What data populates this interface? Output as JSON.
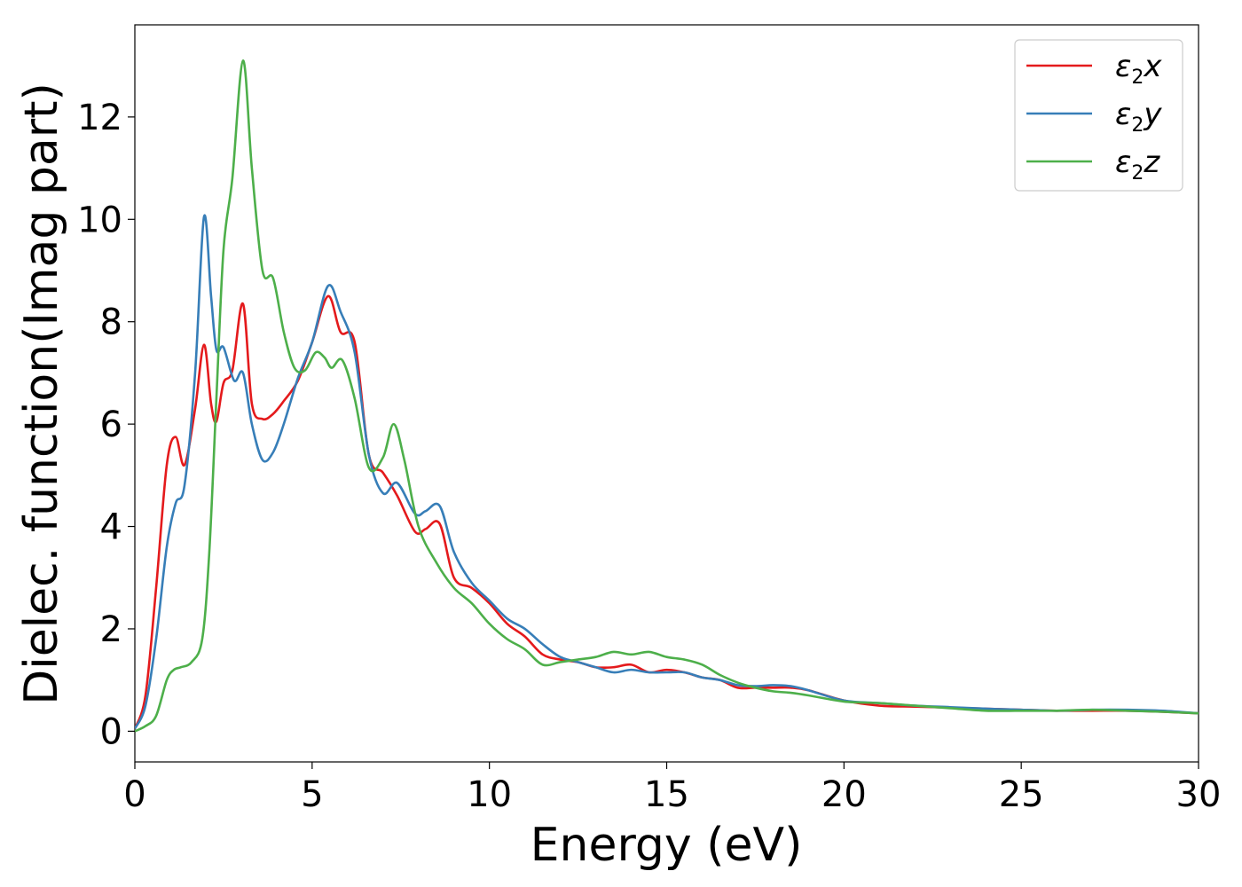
{
  "chart_data": {
    "type": "line",
    "title": "",
    "xlabel": "Energy (eV)",
    "ylabel": "Dielec. function(Imag part)",
    "xlim": [
      0,
      30
    ],
    "ylim": [
      -0.6,
      13.8
    ],
    "xticks": [
      0,
      5,
      10,
      15,
      20,
      25,
      30
    ],
    "xtick_labels": [
      "0",
      "5",
      "10",
      "15",
      "20",
      "25",
      "30"
    ],
    "yticks": [
      0,
      2,
      4,
      6,
      8,
      10,
      12
    ],
    "ytick_labels": [
      "0",
      "2",
      "4",
      "6",
      "8",
      "10",
      "12"
    ],
    "grid": false,
    "legend_position": "top-right",
    "series": [
      {
        "name": "ε₂x",
        "legend_base": "ε",
        "legend_sub": "2",
        "legend_var": "x",
        "color": "#e41a1c",
        "x": [
          0,
          0.3,
          0.6,
          0.9,
          1.15,
          1.4,
          1.7,
          1.95,
          2.15,
          2.3,
          2.5,
          2.75,
          3.05,
          3.3,
          3.6,
          3.9,
          4.2,
          4.6,
          5.0,
          5.45,
          5.8,
          6.2,
          6.6,
          7.0,
          7.4,
          7.9,
          8.2,
          8.6,
          9.0,
          9.5,
          10.0,
          10.5,
          11.0,
          11.5,
          12.0,
          12.5,
          13.0,
          13.5,
          14.0,
          14.5,
          15.0,
          15.5,
          16.0,
          16.5,
          17.0,
          17.5,
          18.0,
          18.5,
          19.0,
          20.0,
          21.0,
          22.0,
          23.0,
          24.0,
          25.0,
          26.0,
          27.0,
          28.0,
          29.0,
          30.0
        ],
        "values": [
          0.05,
          0.7,
          2.8,
          5.2,
          5.75,
          5.2,
          6.3,
          7.55,
          6.4,
          6.05,
          6.8,
          7.05,
          8.35,
          6.4,
          6.1,
          6.2,
          6.45,
          6.85,
          7.6,
          8.5,
          7.8,
          7.6,
          5.4,
          5.05,
          4.6,
          3.9,
          3.95,
          4.05,
          3.0,
          2.8,
          2.5,
          2.1,
          1.85,
          1.5,
          1.4,
          1.35,
          1.25,
          1.25,
          1.3,
          1.15,
          1.2,
          1.15,
          1.05,
          1.0,
          0.85,
          0.85,
          0.85,
          0.85,
          0.8,
          0.6,
          0.5,
          0.48,
          0.46,
          0.44,
          0.42,
          0.4,
          0.4,
          0.4,
          0.38,
          0.35
        ]
      },
      {
        "name": "ε₂y",
        "legend_base": "ε",
        "legend_sub": "2",
        "legend_var": "y",
        "color": "#377eb8",
        "x": [
          0,
          0.3,
          0.6,
          0.9,
          1.15,
          1.4,
          1.7,
          1.95,
          2.15,
          2.3,
          2.5,
          2.8,
          3.05,
          3.3,
          3.6,
          3.9,
          4.2,
          4.6,
          5.0,
          5.45,
          5.8,
          6.2,
          6.6,
          7.0,
          7.4,
          7.9,
          8.2,
          8.6,
          9.0,
          9.5,
          10.0,
          10.5,
          11.0,
          11.5,
          12.0,
          12.5,
          13.0,
          13.5,
          14.0,
          14.5,
          15.0,
          15.5,
          16.0,
          16.5,
          17.0,
          17.5,
          18.0,
          18.5,
          19.0,
          20.0,
          21.0,
          22.0,
          23.0,
          24.0,
          25.0,
          26.0,
          27.0,
          28.0,
          29.0,
          30.0
        ],
        "values": [
          0.05,
          0.5,
          1.8,
          3.6,
          4.45,
          4.8,
          7.0,
          10.05,
          8.5,
          7.45,
          7.5,
          6.85,
          7.0,
          6.0,
          5.3,
          5.45,
          6.0,
          6.9,
          7.6,
          8.7,
          8.2,
          7.4,
          5.4,
          4.65,
          4.85,
          4.25,
          4.3,
          4.4,
          3.5,
          2.9,
          2.55,
          2.2,
          2.0,
          1.7,
          1.45,
          1.35,
          1.25,
          1.15,
          1.2,
          1.15,
          1.15,
          1.15,
          1.05,
          1.0,
          0.9,
          0.88,
          0.9,
          0.88,
          0.8,
          0.6,
          0.55,
          0.5,
          0.47,
          0.44,
          0.42,
          0.4,
          0.42,
          0.42,
          0.4,
          0.35
        ]
      },
      {
        "name": "ε₂z",
        "legend_base": "ε",
        "legend_sub": "2",
        "legend_var": "z",
        "color": "#4daf4a",
        "x": [
          0,
          0.3,
          0.6,
          0.9,
          1.1,
          1.3,
          1.6,
          1.9,
          2.1,
          2.3,
          2.5,
          2.75,
          3.05,
          3.3,
          3.6,
          3.9,
          4.2,
          4.5,
          4.8,
          5.1,
          5.35,
          5.55,
          5.85,
          6.2,
          6.6,
          7.0,
          7.3,
          7.6,
          8.0,
          8.5,
          9.0,
          9.5,
          10.0,
          10.5,
          11.0,
          11.5,
          12.0,
          12.5,
          13.0,
          13.5,
          14.0,
          14.5,
          15.0,
          15.5,
          16.0,
          16.5,
          17.0,
          17.5,
          18.0,
          18.5,
          19.0,
          20.0,
          21.0,
          22.0,
          23.0,
          24.0,
          25.0,
          26.0,
          27.0,
          28.0,
          29.0,
          30.0
        ],
        "values": [
          0.0,
          0.1,
          0.3,
          1.0,
          1.2,
          1.25,
          1.35,
          1.8,
          3.5,
          6.5,
          9.4,
          10.8,
          13.1,
          11.0,
          9.0,
          8.85,
          7.8,
          7.1,
          7.05,
          7.4,
          7.3,
          7.1,
          7.25,
          6.5,
          5.15,
          5.35,
          6.0,
          5.3,
          4.0,
          3.3,
          2.8,
          2.5,
          2.1,
          1.8,
          1.6,
          1.3,
          1.35,
          1.4,
          1.45,
          1.55,
          1.5,
          1.55,
          1.45,
          1.4,
          1.3,
          1.1,
          0.95,
          0.85,
          0.78,
          0.75,
          0.7,
          0.58,
          0.55,
          0.5,
          0.45,
          0.4,
          0.4,
          0.4,
          0.42,
          0.4,
          0.38,
          0.35
        ]
      }
    ]
  }
}
